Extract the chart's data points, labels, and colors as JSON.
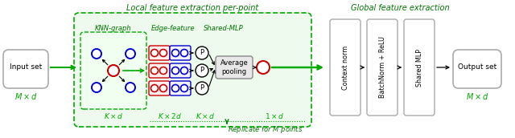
{
  "fig_width": 6.4,
  "fig_height": 1.72,
  "dpi": 100,
  "bg_color": "#ffffff",
  "green": "#00aa00",
  "dark_green": "#007700",
  "light_green_bg": "#edfaed",
  "inner_green_bg": "#f0fff0",
  "red": "#cc0000",
  "blue": "#0000cc",
  "black": "#000000",
  "gray": "#888888",
  "light_gray": "#aaaaaa",
  "avg_pool_bg": "#e8e8e8",
  "title_local": "Local feature extraction per-point",
  "title_global": "Global feature extraction",
  "label_knn": "KNN-graph",
  "label_edge": "Edge-feature",
  "label_shared": "Shared-MLP",
  "input_label": "Input set",
  "output_label": "Output set",
  "avg_pool_label": "Average\npooling",
  "context_norm": "Context norm",
  "batchnorm_relu": "BatchNorm + ReLU",
  "shared_mlp": "Shared MLP",
  "replicate_text": "Replicate for $M$ points",
  "dim_kxd": "$K \\times d$",
  "dim_kx2d": "$K \\times 2d$",
  "dim_kxd2": "$K \\times d$",
  "dim_1xd": "$1 \\times d$",
  "dim_mxd": "$M \\times d$"
}
